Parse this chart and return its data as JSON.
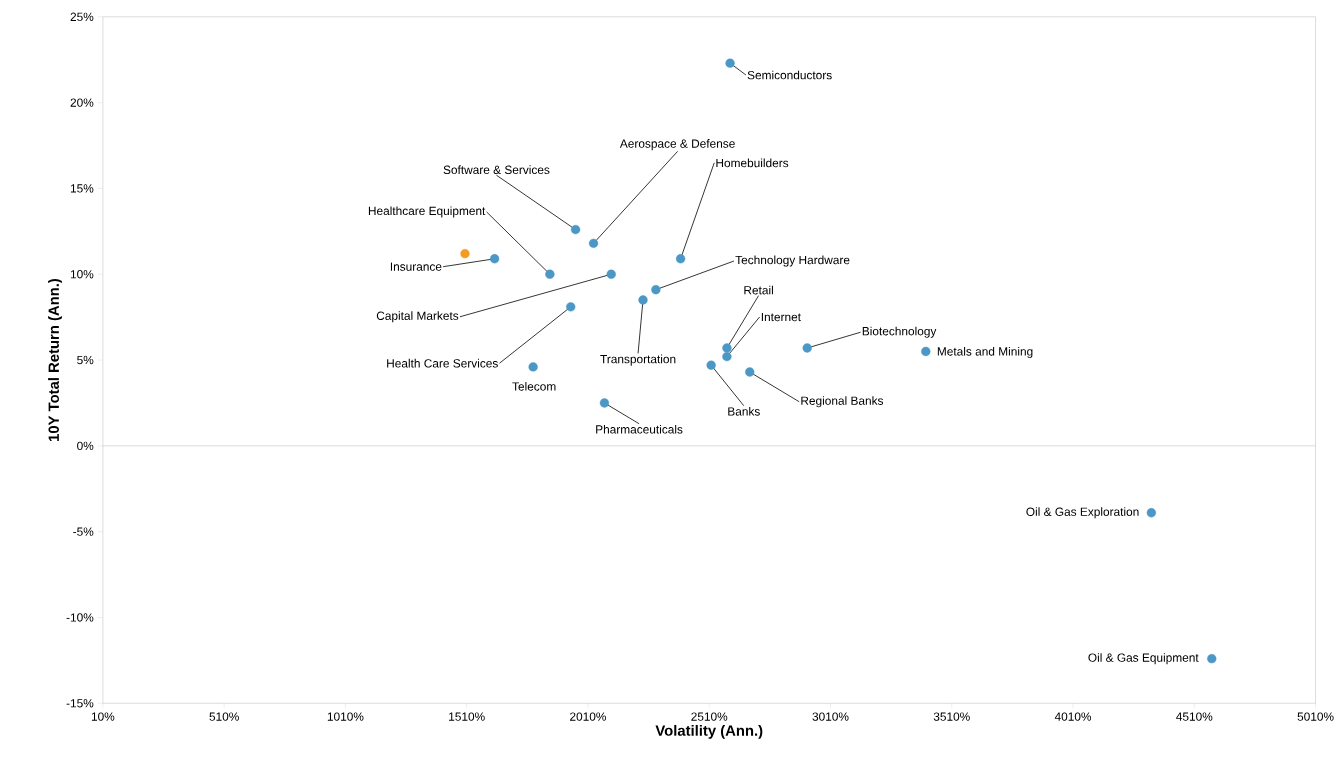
{
  "chart_data": {
    "type": "scatter",
    "xlabel": "Volatility (Ann.)",
    "ylabel": "10Y Total Return (Ann.)",
    "xlim": [
      10,
      5010
    ],
    "ylim": [
      -15,
      25
    ],
    "xticks": [
      {
        "value": 10,
        "label": "10%"
      },
      {
        "value": 510,
        "label": "510%"
      },
      {
        "value": 1010,
        "label": "1010%"
      },
      {
        "value": 1510,
        "label": "1510%"
      },
      {
        "value": 2010,
        "label": "2010%"
      },
      {
        "value": 2510,
        "label": "2510%"
      },
      {
        "value": 3010,
        "label": "3010%"
      },
      {
        "value": 3510,
        "label": "3510%"
      },
      {
        "value": 4010,
        "label": "4010%"
      },
      {
        "value": 4510,
        "label": "4510%"
      },
      {
        "value": 5010,
        "label": "5010%"
      }
    ],
    "yticks": [
      {
        "value": -15,
        "label": "-15%"
      },
      {
        "value": -10,
        "label": "-10%"
      },
      {
        "value": -5,
        "label": "-5%"
      },
      {
        "value": 0,
        "label": "0%"
      },
      {
        "value": 5,
        "label": "5%"
      },
      {
        "value": 10,
        "label": "10%"
      },
      {
        "value": 15,
        "label": "15%"
      },
      {
        "value": 20,
        "label": "20%"
      },
      {
        "value": 25,
        "label": "25%"
      }
    ],
    "grid": false,
    "ref_lines": [
      {
        "axis": "y",
        "value": 0,
        "color": "#a6a6a6"
      }
    ],
    "series": [
      {
        "color": "#4b98c6",
        "x": [
          2596,
          1959,
          2033,
          2392,
          1625,
          1853,
          2106,
          2290,
          2237,
          1939,
          2583,
          2583,
          2914,
          3403,
          1784,
          2518,
          2677,
          2078,
          4333,
          4582
        ],
        "values": [
          22.3,
          12.6,
          11.8,
          10.9,
          10.9,
          10.0,
          10.0,
          9.1,
          8.5,
          8.1,
          5.7,
          5.2,
          5.7,
          5.5,
          4.6,
          4.7,
          4.3,
          2.5,
          -3.9,
          -12.4
        ]
      },
      {
        "color": "#f39c1f",
        "x": [
          1503
        ],
        "values": [
          11.2
        ]
      }
    ],
    "annotations": [
      {
        "text": "Semiconductors",
        "x": 2596,
        "y": 22.3
      },
      {
        "text": "Software & Services",
        "x": 1959,
        "y": 12.6
      },
      {
        "text": "Aerospace & Defense",
        "x": 2033,
        "y": 11.8
      },
      {
        "text": "Homebuilders",
        "x": 2392,
        "y": 10.9
      },
      {
        "text": "Insurance",
        "x": 1625,
        "y": 10.9
      },
      {
        "text": "Healthcare Equipment",
        "x": 1853,
        "y": 10.0
      },
      {
        "text": "Capital Markets",
        "x": 2106,
        "y": 10.0
      },
      {
        "text": "Technology Hardware",
        "x": 2290,
        "y": 9.1
      },
      {
        "text": "Transportation",
        "x": 2237,
        "y": 8.5
      },
      {
        "text": "Health Care Services",
        "x": 1939,
        "y": 8.1
      },
      {
        "text": "Retail",
        "x": 2583,
        "y": 5.7
      },
      {
        "text": "Internet",
        "x": 2583,
        "y": 5.2
      },
      {
        "text": "Biotechnology",
        "x": 2914,
        "y": 5.7
      },
      {
        "text": "Metals and Mining",
        "x": 3403,
        "y": 5.5
      },
      {
        "text": "Telecom",
        "x": 1784,
        "y": 4.6
      },
      {
        "text": "Banks",
        "x": 2518,
        "y": 4.7
      },
      {
        "text": "Regional Banks",
        "x": 2677,
        "y": 4.3
      },
      {
        "text": "Pharmaceuticals",
        "x": 2078,
        "y": 2.5
      },
      {
        "text": "Oil & Gas Exploration",
        "x": 4333,
        "y": -3.9
      },
      {
        "text": "Oil & Gas Equipment",
        "x": 4582,
        "y": -12.4
      }
    ]
  }
}
